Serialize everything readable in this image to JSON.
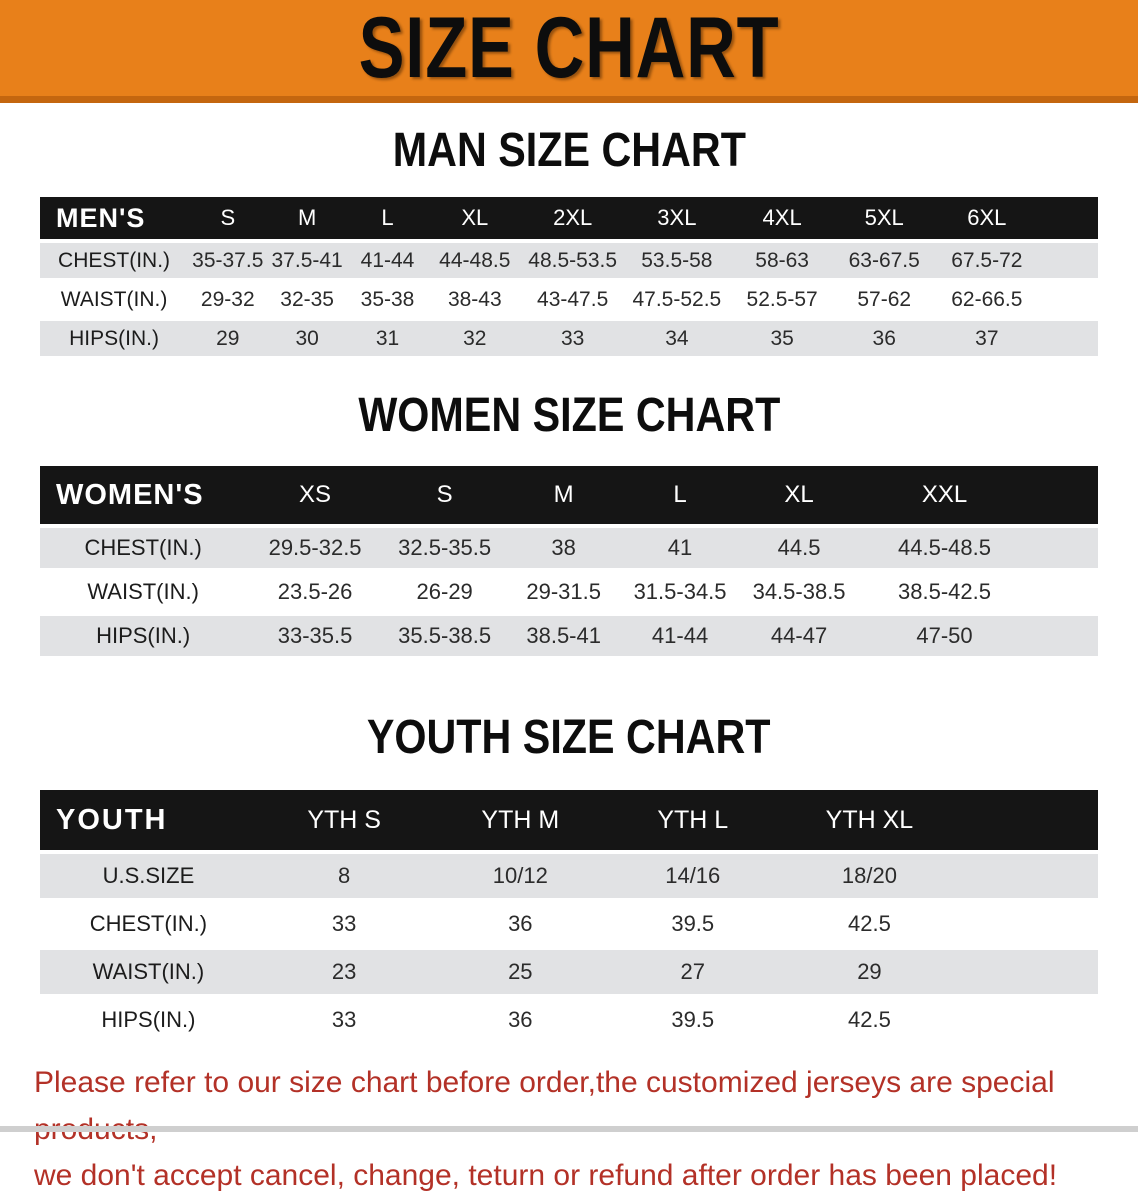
{
  "banner": {
    "title": "SIZE CHART"
  },
  "colors": {
    "banner_bg": "#E8801A",
    "banner_border": "#C4660F",
    "table_header_bg": "#151515",
    "row_stripe": "#E1E2E4",
    "notice_text": "#B33127",
    "heading_text": "#0D0D0D"
  },
  "sections": [
    {
      "heading": "MAN SIZE CHART",
      "table": {
        "corner": "MEN'S",
        "columns": [
          "S",
          "M",
          "L",
          "XL",
          "2XL",
          "3XL",
          "4XL",
          "5XL",
          "6XL"
        ],
        "rows": [
          {
            "label": "CHEST(IN.)",
            "values": [
              "35-37.5",
              "37.5-41",
              "41-44",
              "44-48.5",
              "48.5-53.5",
              "53.5-58",
              "58-63",
              "63-67.5",
              "67.5-72"
            ]
          },
          {
            "label": "WAIST(IN.)",
            "values": [
              "29-32",
              "32-35",
              "35-38",
              "38-43",
              "43-47.5",
              "47.5-52.5",
              "52.5-57",
              "57-62",
              "62-66.5"
            ]
          },
          {
            "label": "HIPS(IN.)",
            "values": [
              "29",
              "30",
              "31",
              "32",
              "33",
              "34",
              "35",
              "36",
              "37"
            ]
          }
        ]
      }
    },
    {
      "heading": "WOMEN SIZE CHART",
      "table": {
        "corner": "WOMEN'S",
        "columns": [
          "XS",
          "S",
          "M",
          "L",
          "XL",
          "XXL"
        ],
        "rows": [
          {
            "label": "CHEST(IN.)",
            "values": [
              "29.5-32.5",
              "32.5-35.5",
              "38",
              "41",
              "44.5",
              "44.5-48.5"
            ]
          },
          {
            "label": "WAIST(IN.)",
            "values": [
              "23.5-26",
              "26-29",
              "29-31.5",
              "31.5-34.5",
              "34.5-38.5",
              "38.5-42.5"
            ]
          },
          {
            "label": "HIPS(IN.)",
            "values": [
              "33-35.5",
              "35.5-38.5",
              "38.5-41",
              "41-44",
              "44-47",
              "47-50"
            ]
          }
        ]
      }
    },
    {
      "heading": "YOUTH SIZE CHART",
      "table": {
        "corner": "YOUTH",
        "columns": [
          "YTH S",
          "YTH M",
          "YTH L",
          "YTH XL"
        ],
        "rows": [
          {
            "label": "U.S.SIZE",
            "values": [
              "8",
              "10/12",
              "14/16",
              "18/20"
            ]
          },
          {
            "label": "CHEST(IN.)",
            "values": [
              "33",
              "36",
              "39.5",
              "42.5"
            ]
          },
          {
            "label": "WAIST(IN.)",
            "values": [
              "23",
              "25",
              "27",
              "29"
            ]
          },
          {
            "label": "HIPS(IN.)",
            "values": [
              "33",
              "36",
              "39.5",
              "42.5"
            ]
          }
        ]
      }
    }
  ],
  "footer": {
    "line1": "Please refer to our size chart before order,the customized jerseys are special products,",
    "line2": "we don't accept cancel, change, teturn or refund after order has been placed!"
  }
}
